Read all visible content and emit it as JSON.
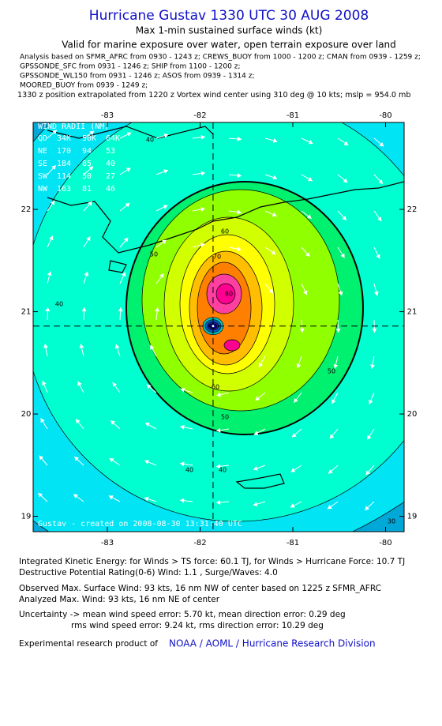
{
  "header": {
    "title": "Hurricane Gustav 1330 UTC 30 AUG 2008",
    "subtitle": "Max 1-min sustained surface winds (kt)",
    "validity": "Valid for marine exposure over water, open terrain exposure over land",
    "sources": [
      "Analysis based on   SFMR_AFRC from 0930 - 1243 z;  CREWS_BUOY from 1000 - 1200 z;  CMAN from 0939 - 1259 z;",
      "GPSSONDE_SFC from 0931 - 1246 z;  SHIP from 1100 - 1200 z;",
      "GPSSONDE_WL150 from 0931 - 1246 z;  ASOS from 0939 - 1314 z;",
      "MOORED_BUOY from 0939 - 1249 z;"
    ],
    "position_note": "1330 z position extrapolated from 1220 z Vortex wind center using 310 deg @ 10 kts; mslp = 954.0 mb"
  },
  "map": {
    "xlim": [
      -83.8,
      -79.8
    ],
    "ylim": [
      18.85,
      22.85
    ],
    "xticks": [
      -83,
      -82,
      -81,
      -80
    ],
    "yticks": [
      19,
      20,
      21,
      22
    ],
    "center": {
      "lon": -81.86,
      "lat": 20.86
    },
    "contours": [
      {
        "level": 30,
        "color": "#00e4f4"
      },
      {
        "level": 40,
        "color": "#00ffd0"
      },
      {
        "level": 50,
        "color": "#00f070"
      },
      {
        "level": 55,
        "color": "#90ff00"
      },
      {
        "level": 60,
        "color": "#d2ff00"
      },
      {
        "level": 65,
        "color": "#ffff00"
      },
      {
        "level": 70,
        "color": "#ffbe00"
      },
      {
        "level": 75,
        "color": "#ff8000"
      },
      {
        "level": 80,
        "color": "#ff40a0"
      },
      {
        "level": 85,
        "color": "#ff0090"
      }
    ],
    "contour_labels": [
      40,
      40,
      50,
      60,
      70,
      80,
      60,
      50,
      50,
      40,
      40,
      30
    ],
    "wind_radii": {
      "title": "WIND RADII (NM)",
      "columns": [
        "QD",
        "34K",
        "50K",
        "64K"
      ],
      "rows": [
        [
          "NE",
          170,
          94,
          53
        ],
        [
          "SE",
          184,
          85,
          40
        ],
        [
          "SW",
          114,
          50,
          27
        ],
        [
          "NW",
          163,
          81,
          46
        ]
      ]
    },
    "credit": "Gustav - created on 2008-08-30 13:31:40 UTC"
  },
  "footer": {
    "ike": "Integrated Kinetic Energy:  for Winds > TS force: 60.1 TJ,  for Winds > Hurricane Force: 10.7 TJ",
    "dpr": "Destructive Potential Rating(0-6)   Wind: 1.1 , Surge/Waves: 4.0",
    "observed": "Observed Max. Surface Wind: 93 kts, 16 nm NW of center based on 1225 z SFMR_AFRC",
    "analyzed": "Analyzed Max. Wind: 93 kts, 16 nm NE of center",
    "uncertainty1": "Uncertainty -> mean wind speed error: 5.70 kt,   mean direction error: 0.29 deg",
    "uncertainty2": "rms wind speed error: 9.24 kt,   rms direction error: 10.29 deg",
    "product": "Experimental research product of",
    "org": "NOAA / AOML / Hurricane Research Division"
  }
}
